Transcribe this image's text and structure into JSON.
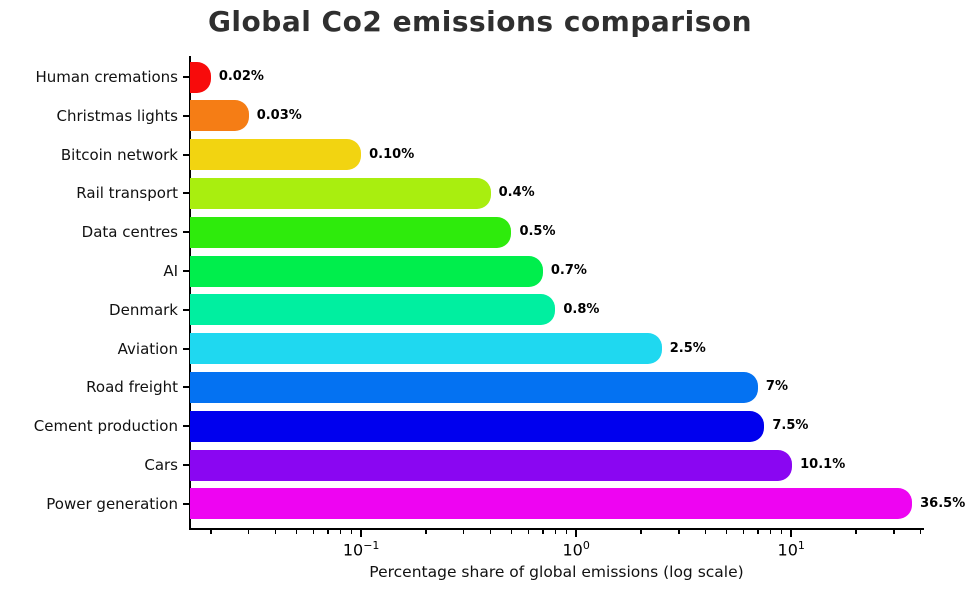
{
  "title": "Global Co2 emissions comparison",
  "chart_data": {
    "type": "bar",
    "orientation": "horizontal",
    "xscale": "log",
    "grid": false,
    "title": "Global Co2 emissions comparison",
    "xlabel": "Percentage share of global emissions (log scale)",
    "categories": [
      "Human cremations",
      "Christmas lights",
      "Bitcoin network",
      "Rail transport",
      "Data centres",
      "AI",
      "Denmark",
      "Aviation",
      "Road freight",
      "Cement production",
      "Cars",
      "Power generation"
    ],
    "values": [
      0.02,
      0.03,
      0.1,
      0.4,
      0.5,
      0.7,
      0.8,
      2.5,
      7,
      7.5,
      10.1,
      36.5
    ],
    "value_labels": [
      "0.02%",
      "0.03%",
      "0.10%",
      "0.4%",
      "0.5%",
      "0.7%",
      "0.8%",
      "2.5%",
      "7%",
      "7.5%",
      "10.1%",
      "36.5%"
    ],
    "bar_colors": [
      "#F80B0B",
      "#F57D15",
      "#F2D411",
      "#A9EE0F",
      "#2EEB0C",
      "#00EE4C",
      "#00EFA0",
      "#1FD8F0",
      "#0472F2",
      "#0000EE",
      "#8A06F2",
      "#EE04F2"
    ],
    "xlim": [
      0.016,
      41
    ],
    "x_major_ticks": [
      {
        "value": 0.1,
        "base": "10",
        "exponent": "−1"
      },
      {
        "value": 1,
        "base": "10",
        "exponent": "0"
      },
      {
        "value": 10,
        "base": "10",
        "exponent": "1"
      }
    ]
  },
  "colors": {
    "title_color": "#2f2f2f",
    "axis_color": "#000000",
    "text_color": "#111111",
    "background": "#ffffff"
  }
}
